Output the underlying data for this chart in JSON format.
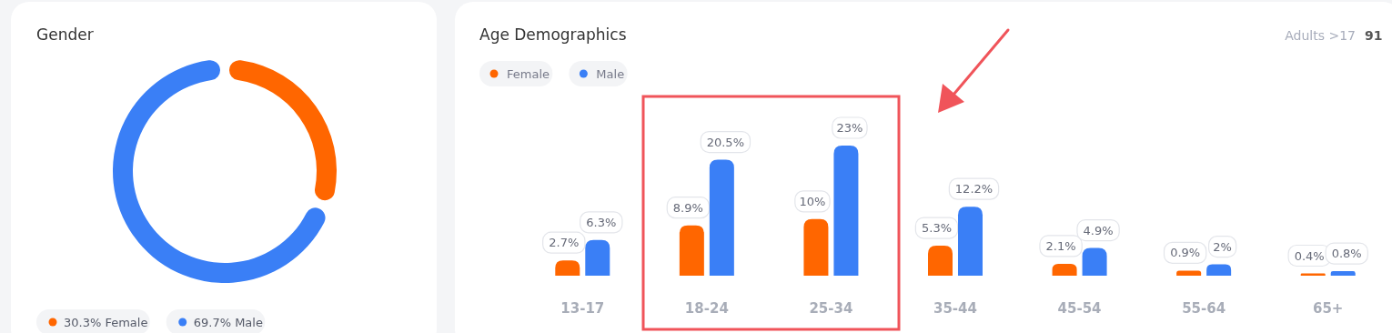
{
  "chart_data": [
    {
      "type": "donut",
      "title": "Gender",
      "categories": [
        "Female",
        "Male"
      ],
      "values": [
        30.3,
        69.7
      ],
      "colors": [
        "#ff6600",
        "#3a7ff6"
      ],
      "value_labels": [
        "30.3%",
        "69.7%"
      ],
      "legend": "bottom"
    },
    {
      "type": "bar",
      "title": "Age Demographics",
      "annotations": [
        "Adults >17",
        "91"
      ],
      "categories": [
        "13-17",
        "18-24",
        "25-34",
        "35-44",
        "45-54",
        "55-64",
        "65+"
      ],
      "series": [
        {
          "name": "Female",
          "color": "#ff6600",
          "values": [
            2.7,
            8.9,
            10,
            5.3,
            2.1,
            0.9,
            0.4
          ],
          "value_labels": [
            "2.7%",
            "8.9%",
            "10%",
            "5.3%",
            "2.1%",
            "0.9%",
            "0.4%"
          ]
        },
        {
          "name": "Male",
          "color": "#3a7ff6",
          "values": [
            6.3,
            20.5,
            23,
            12.2,
            4.9,
            2,
            0.8
          ],
          "value_labels": [
            "6.3%",
            "20.5%",
            "23%",
            "12.2%",
            "4.9%",
            "2%",
            "0.8%"
          ]
        }
      ],
      "legend": "top left"
    }
  ]
}
